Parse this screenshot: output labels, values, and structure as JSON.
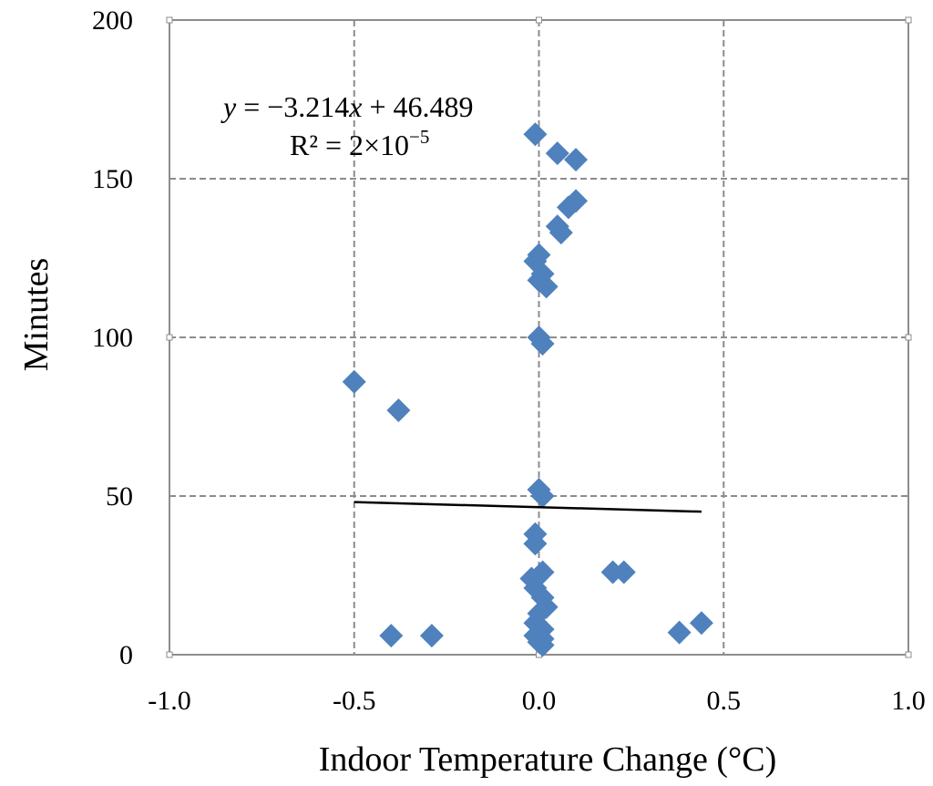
{
  "chart_data": {
    "type": "scatter",
    "title": "",
    "xlabel": "Indoor Temperature Change (°C)",
    "ylabel": "Minutes",
    "xlim": [
      -1.0,
      1.0
    ],
    "ylim": [
      0,
      200
    ],
    "xticks": [
      -1.0,
      -0.5,
      0.0,
      0.5,
      1.0
    ],
    "yticks": [
      0,
      50,
      100,
      150,
      200
    ],
    "xtick_labels": [
      "-1.0",
      "-0.5",
      "0.0",
      "0.5",
      "1.0"
    ],
    "ytick_labels": [
      "0",
      "50",
      "100",
      "150",
      "200"
    ],
    "grid": true,
    "legend": "none",
    "marker": "diamond",
    "marker_color": "#4F81BD",
    "trendline_color": "#000000",
    "trendline": {
      "slope": -3.214,
      "intercept": 46.489,
      "x_range": [
        -0.5,
        0.44
      ],
      "equation_parts": [
        "y",
        " = −3.214",
        "x",
        " + 46.489"
      ],
      "r2_label": "R² = 2×10",
      "r2_exponent": "−5"
    },
    "points": [
      {
        "x": -0.5,
        "y": 86
      },
      {
        "x": -0.38,
        "y": 77
      },
      {
        "x": -0.4,
        "y": 6
      },
      {
        "x": -0.29,
        "y": 6
      },
      {
        "x": -0.01,
        "y": 164
      },
      {
        "x": 0.05,
        "y": 158
      },
      {
        "x": 0.1,
        "y": 156
      },
      {
        "x": 0.1,
        "y": 143
      },
      {
        "x": 0.08,
        "y": 141
      },
      {
        "x": 0.05,
        "y": 135
      },
      {
        "x": 0.06,
        "y": 133
      },
      {
        "x": 0.0,
        "y": 126
      },
      {
        "x": -0.01,
        "y": 124
      },
      {
        "x": 0.01,
        "y": 120
      },
      {
        "x": 0.0,
        "y": 118
      },
      {
        "x": 0.02,
        "y": 116
      },
      {
        "x": 0.0,
        "y": 100
      },
      {
        "x": 0.01,
        "y": 98
      },
      {
        "x": 0.0,
        "y": 52
      },
      {
        "x": 0.01,
        "y": 50
      },
      {
        "x": -0.01,
        "y": 38
      },
      {
        "x": -0.01,
        "y": 35
      },
      {
        "x": 0.01,
        "y": 26
      },
      {
        "x": -0.02,
        "y": 24
      },
      {
        "x": -0.01,
        "y": 21
      },
      {
        "x": 0.01,
        "y": 18
      },
      {
        "x": 0.02,
        "y": 15
      },
      {
        "x": 0.0,
        "y": 13
      },
      {
        "x": -0.01,
        "y": 10
      },
      {
        "x": 0.01,
        "y": 8
      },
      {
        "x": -0.01,
        "y": 6
      },
      {
        "x": 0.01,
        "y": 5
      },
      {
        "x": 0.0,
        "y": 4
      },
      {
        "x": 0.01,
        "y": 3
      },
      {
        "x": 0.2,
        "y": 26
      },
      {
        "x": 0.23,
        "y": 26
      },
      {
        "x": 0.38,
        "y": 7
      },
      {
        "x": 0.44,
        "y": 10
      }
    ]
  }
}
